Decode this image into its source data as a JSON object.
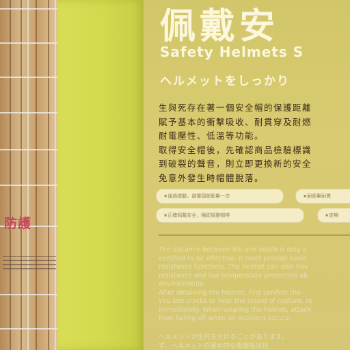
{
  "left_wall": {
    "sign_text": "防護"
  },
  "panel": {
    "title": "佩戴安",
    "en_title": "Safety Helmets S",
    "jp_title": "ヘルメットをしっかり",
    "zh_lines": [
      "生與死存在著一個安全帽的保護距離",
      "賦予基本的衝擊吸收、耐貫穿及耐燃",
      "耐電壓性、低溫等功能。",
      "取得安全帽後，先確認商品檢驗標識",
      "到破裂的聲音，則立即更換新的安全",
      "免意外發生時帽體脫落。"
    ],
    "pills": [
      "★通過檢驗，避撞頭部衝擊一次",
      "★耐衝擊耐貫",
      "★正確佩戴安全，隨即調整帽帶",
      "★定期"
    ],
    "en_lines": [
      "The distance between life and death is only a",
      "certified to be effective, it must provide basic",
      "resistance functions. The helmet can also hav",
      "resistance and low temperature protection ab",
      "environments.",
      "After obtaining the helmet, first confirm the",
      "you see cracks or hear the sound of rupture, re",
      "immediately. When wearing the helmet, attach",
      "from falling off when an accident occurs."
    ],
    "jp_lines": [
      "ヘルメットが生死を分けることがあります。",
      "ず、ヘルメットの基本的な衝撃吸収性"
    ]
  }
}
